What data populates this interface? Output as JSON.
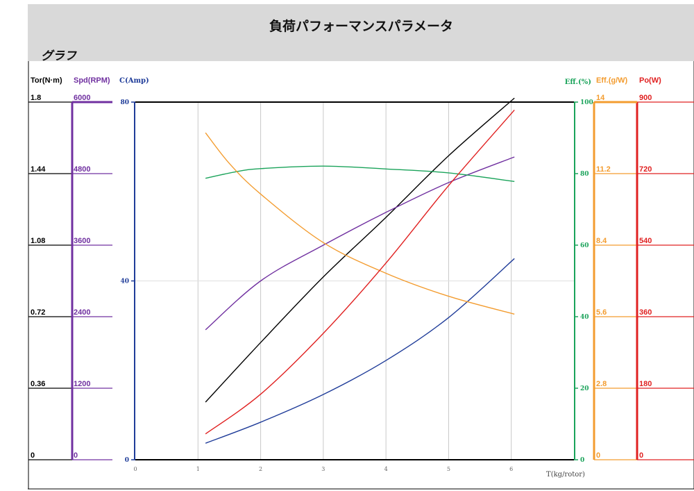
{
  "header": {
    "title": "負荷パフォーマンスパラメータ",
    "section": "グラフ"
  },
  "colors": {
    "torque": "#000000",
    "speed": "#7030a0",
    "current": "#1f3c99",
    "eff_percent": "#1aa35a",
    "eff_gw": "#f39c2f",
    "power": "#e02020",
    "grid": "#c8c8c8",
    "band": "#d9d9d9"
  },
  "chart_data": {
    "type": "line",
    "xlabel": "T(kg/rotor)",
    "xlim": [
      0,
      7
    ],
    "xticks": [
      "0",
      "1",
      "2",
      "3",
      "4",
      "5",
      "6"
    ],
    "grid": true,
    "axes": [
      {
        "id": "tor",
        "label": "Tor(N·m)",
        "ticks": [
          "0",
          "0.36",
          "0.72",
          "1.08",
          "1.44",
          "1.8"
        ],
        "range": [
          0,
          1.8
        ]
      },
      {
        "id": "spd",
        "label": "Spd(RPM)",
        "ticks": [
          "0",
          "1200",
          "2400",
          "3600",
          "4800",
          "6000"
        ],
        "range": [
          0,
          6000
        ]
      },
      {
        "id": "cur",
        "label": "C(Amp)",
        "ticks": [
          "0",
          "40",
          "80"
        ],
        "range": [
          0,
          80
        ]
      },
      {
        "id": "eff",
        "label": "Eff.(%)",
        "ticks": [
          "0",
          "20",
          "40",
          "60",
          "80",
          "100"
        ],
        "range": [
          0,
          100
        ]
      },
      {
        "id": "effgw",
        "label": "Eff.(g/W)",
        "ticks": [
          "0",
          "2.8",
          "5.6",
          "8.4",
          "11.2",
          "14"
        ],
        "range": [
          0,
          14
        ]
      },
      {
        "id": "po",
        "label": "Po(W)",
        "ticks": [
          "0",
          "180",
          "360",
          "540",
          "720",
          "900"
        ],
        "range": [
          0,
          900
        ]
      }
    ],
    "series": [
      {
        "axis": "tor",
        "color_key": "torque",
        "points": [
          [
            1.12,
            0.29
          ],
          [
            2,
            0.59
          ],
          [
            3,
            0.92
          ],
          [
            4,
            1.22
          ],
          [
            5,
            1.53
          ],
          [
            6.05,
            1.82
          ]
        ]
      },
      {
        "axis": "spd",
        "color_key": "speed",
        "points": [
          [
            1.12,
            2180
          ],
          [
            2,
            3000
          ],
          [
            3,
            3600
          ],
          [
            4,
            4150
          ],
          [
            5,
            4650
          ],
          [
            6.05,
            5080
          ]
        ]
      },
      {
        "axis": "cur",
        "color_key": "current",
        "points": [
          [
            1.12,
            3.7
          ],
          [
            2,
            8.4
          ],
          [
            3,
            14.6
          ],
          [
            4,
            22.2
          ],
          [
            5,
            31.8
          ],
          [
            6.05,
            45
          ]
        ]
      },
      {
        "axis": "eff",
        "color_key": "eff_percent",
        "points": [
          [
            1.12,
            78.7
          ],
          [
            1.6,
            80.5
          ],
          [
            2,
            81.4
          ],
          [
            3,
            82.1
          ],
          [
            4,
            81.3
          ],
          [
            5,
            80.2
          ],
          [
            6.05,
            77.8
          ]
        ]
      },
      {
        "axis": "effgw",
        "color_key": "eff_gw",
        "points": [
          [
            1.12,
            12.8
          ],
          [
            1.5,
            11.6
          ],
          [
            2,
            10.4
          ],
          [
            3,
            8.5
          ],
          [
            4,
            7.3
          ],
          [
            5,
            6.4
          ],
          [
            6.05,
            5.7
          ]
        ]
      },
      {
        "axis": "po",
        "color_key": "power",
        "points": [
          [
            1.12,
            65
          ],
          [
            2,
            165
          ],
          [
            3,
            318
          ],
          [
            4,
            495
          ],
          [
            5,
            690
          ],
          [
            6.05,
            880
          ]
        ]
      }
    ]
  }
}
